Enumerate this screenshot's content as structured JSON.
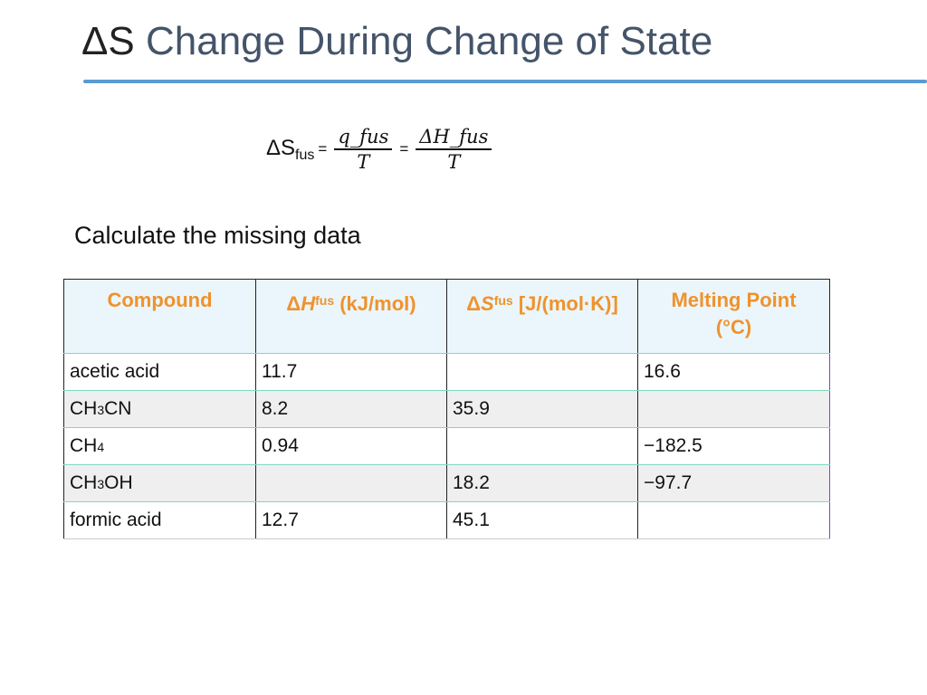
{
  "title": {
    "delta_s": "ΔS",
    "text": "Change During Change of State"
  },
  "formula": {
    "lhs": "ΔS",
    "lhs_sub": "fus",
    "eq1": "=",
    "eq2": "=",
    "frac1_num": "q_fus",
    "frac1_den": "T",
    "frac2_num": "ΔH_fus",
    "frac2_den": "T"
  },
  "instruction": "Calculate the missing data",
  "table": {
    "headers": {
      "compound": "Compound",
      "dh": {
        "delta": "Δ",
        "sym": "H",
        "sub": "fus",
        "unit": "(kJ/mol)"
      },
      "ds": {
        "delta": "Δ",
        "sym": "S",
        "sub": "fus",
        "unit": "[J/(mol·K)]"
      },
      "mp": {
        "line1": "Melting Point",
        "line2": "(°C)"
      }
    },
    "rows": [
      {
        "compound": "acetic acid",
        "dh": "11.7",
        "ds": "",
        "mp": "16.6"
      },
      {
        "compound_parts": [
          "CH",
          "3",
          "CN"
        ],
        "dh": "8.2",
        "ds": "35.9",
        "mp": ""
      },
      {
        "compound_parts": [
          "CH",
          "4",
          ""
        ],
        "dh": "0.94",
        "ds": "",
        "mp": "−182.5"
      },
      {
        "compound_parts": [
          "CH",
          "3",
          "OH"
        ],
        "dh": "",
        "ds": "18.2",
        "mp": "−97.7"
      },
      {
        "compound": "formic acid",
        "dh": "12.7",
        "ds": "45.1",
        "mp": ""
      }
    ]
  }
}
